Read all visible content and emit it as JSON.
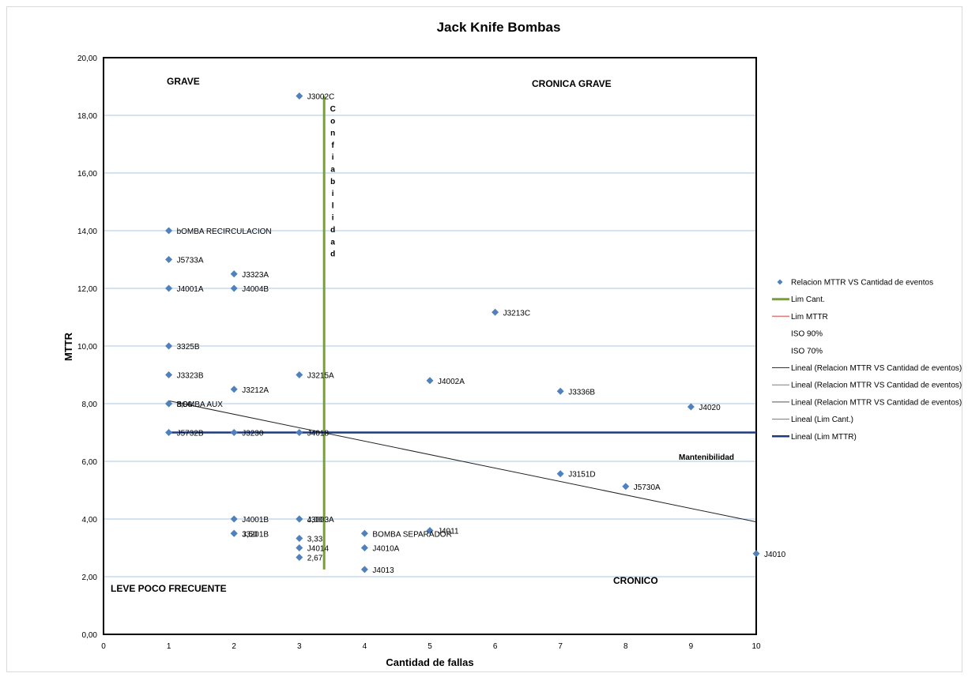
{
  "chart_data": {
    "type": "scatter",
    "title": "Jack Knife Bombas",
    "xlabel": "Cantidad de fallas",
    "ylabel": "MTTR",
    "xlim": [
      0,
      10
    ],
    "ylim": [
      0,
      20
    ],
    "x_ticks": [
      "0",
      "1",
      "2",
      "3",
      "4",
      "5",
      "6",
      "7",
      "8",
      "9",
      "10"
    ],
    "y_ticks": [
      "0,00",
      "2,00",
      "4,00",
      "6,00",
      "8,00",
      "10,00",
      "12,00",
      "14,00",
      "16,00",
      "18,00",
      "20,00"
    ],
    "grid": "horizontal",
    "legend_position": "right",
    "marker_color": "#4f81bd",
    "series": [
      {
        "name": "Relacion MTTR VS Cantidad de eventos",
        "points": [
          {
            "x": 3,
            "y": 18.67,
            "label": "J3002C"
          },
          {
            "x": 1,
            "y": 14.0,
            "label": "bOMBA RECIRCULACION"
          },
          {
            "x": 1,
            "y": 13.0,
            "label": "J5733A"
          },
          {
            "x": 2,
            "y": 12.5,
            "label": "J3323A"
          },
          {
            "x": 1,
            "y": 12.0,
            "label": "J4001A"
          },
          {
            "x": 2,
            "y": 12.0,
            "label": "J4004B"
          },
          {
            "x": 6,
            "y": 11.17,
            "label": "J3213C"
          },
          {
            "x": 1,
            "y": 10.0,
            "label": "3325B"
          },
          {
            "x": 1,
            "y": 9.0,
            "label": "J3323B"
          },
          {
            "x": 3,
            "y": 9.0,
            "label": "J3215A"
          },
          {
            "x": 5,
            "y": 8.8,
            "label": "J4002A"
          },
          {
            "x": 2,
            "y": 8.5,
            "label": "J3212A"
          },
          {
            "x": 7,
            "y": 8.43,
            "label": "J3336B"
          },
          {
            "x": 1,
            "y": 8.0,
            "label": "BOMBA AUX"
          },
          {
            "x": 1,
            "y": 8.0,
            "label": "8,00"
          },
          {
            "x": 9,
            "y": 7.89,
            "label": "J4020"
          },
          {
            "x": 1,
            "y": 7.0,
            "label": "J5732B"
          },
          {
            "x": 2,
            "y": 7.0,
            "label": "J3230"
          },
          {
            "x": 3,
            "y": 7.0,
            "label": "J4018"
          },
          {
            "x": 7,
            "y": 5.57,
            "label": "J3151D"
          },
          {
            "x": 8,
            "y": 5.13,
            "label": "J5730A"
          },
          {
            "x": 2,
            "y": 4.0,
            "label": "J4001B"
          },
          {
            "x": 3,
            "y": 4.0,
            "label": "J3003A"
          },
          {
            "x": 3,
            "y": 4.0,
            "label": "4,00"
          },
          {
            "x": 5,
            "y": 3.6,
            "label": "J4011"
          },
          {
            "x": 2,
            "y": 3.5,
            "label": "J3201B"
          },
          {
            "x": 2,
            "y": 3.5,
            "label": "3,50"
          },
          {
            "x": 4,
            "y": 3.5,
            "label": "BOMBA SEPARADOR"
          },
          {
            "x": 3,
            "y": 3.33,
            "label": "3,33"
          },
          {
            "x": 3,
            "y": 3.0,
            "label": "J4014"
          },
          {
            "x": 4,
            "y": 3.0,
            "label": "J4010A"
          },
          {
            "x": 10,
            "y": 2.8,
            "label": "J4010"
          },
          {
            "x": 3,
            "y": 2.67,
            "label": "2,67"
          },
          {
            "x": 4,
            "y": 2.25,
            "label": "J4013"
          }
        ]
      }
    ],
    "lines": [
      {
        "name": "Lim Cant.",
        "color": "#77a130",
        "x": [
          3.38,
          3.38
        ],
        "y": [
          2.25,
          18.67
        ]
      },
      {
        "name": "Lineal (Lim MTTR)",
        "color": "#1f3a7a",
        "x": [
          1,
          10
        ],
        "y": [
          7.0,
          7.0
        ]
      },
      {
        "name": "Lineal (Relacion MTTR VS Cantidad de eventos)",
        "color": "#222222",
        "x": [
          1,
          10
        ],
        "y": [
          8.1,
          3.9
        ]
      }
    ],
    "legend": [
      {
        "name": "Relacion MTTR VS Cantidad de eventos",
        "type": "marker",
        "color": "#4f81bd"
      },
      {
        "name": "Lim Cant.",
        "type": "line",
        "color": "#77a130",
        "width": 3
      },
      {
        "name": "Lim MTTR",
        "type": "line",
        "color": "#e07b7b",
        "width": 1.5
      },
      {
        "name": "ISO 90%",
        "type": "none",
        "color": "#ffffff"
      },
      {
        "name": "ISO 70%",
        "type": "none",
        "color": "#ffffff"
      },
      {
        "name": "Lineal (Relacion MTTR VS Cantidad de eventos)",
        "type": "line",
        "color": "#333333",
        "width": 1
      },
      {
        "name": "Lineal (Relacion MTTR VS Cantidad de eventos)",
        "type": "line",
        "color": "#7f7f7f",
        "width": 1
      },
      {
        "name": "Lineal (Relacion MTTR VS Cantidad de eventos)",
        "type": "line",
        "color": "#555555",
        "width": 1
      },
      {
        "name": "Lineal (Lim Cant.)",
        "type": "line",
        "color": "#777777",
        "width": 1
      },
      {
        "name": "Lineal (Lim MTTR)",
        "type": "line",
        "color": "#1f3a7a",
        "width": 2.5
      }
    ],
    "annotations": {
      "grave": "GRAVE",
      "cronica_grave": "CRONICA GRAVE",
      "leve": "LEVE POCO FRECUENTE",
      "cronico": "CRONICO",
      "mantenibilidad": "Mantenibilidad",
      "confiabilidad": "Confiabilidad"
    }
  }
}
